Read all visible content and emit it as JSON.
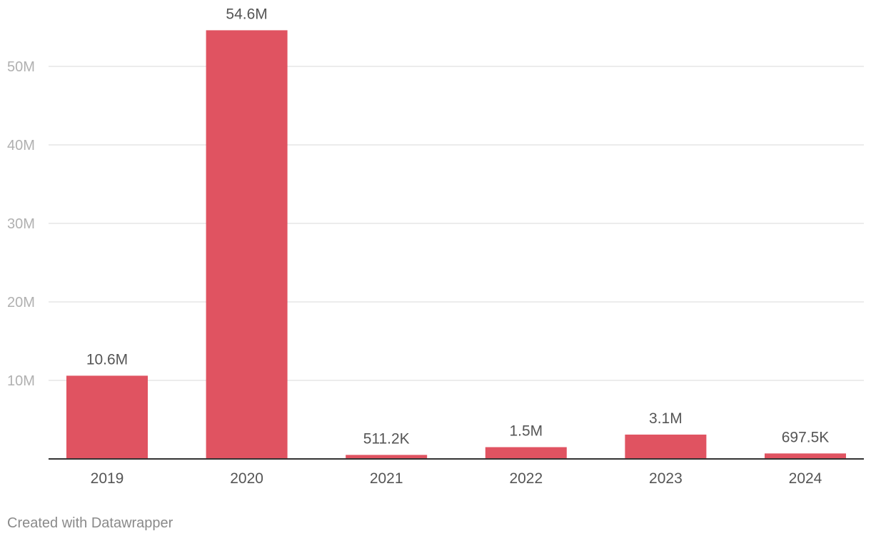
{
  "chart_data": {
    "type": "bar",
    "categories": [
      "2019",
      "2020",
      "2021",
      "2022",
      "2023",
      "2024"
    ],
    "values": [
      10600000,
      54600000,
      511200,
      1500000,
      3100000,
      697500
    ],
    "data_labels": [
      "10.6M",
      "54.6M",
      "511.2K",
      "1.5M",
      "3.1M",
      "697.5K"
    ],
    "yticks": [
      10000000,
      20000000,
      30000000,
      40000000,
      50000000
    ],
    "ytick_labels": [
      "10M",
      "20M",
      "30M",
      "40M",
      "50M"
    ],
    "ylim": [
      0,
      60000000
    ],
    "grid": true,
    "title": "",
    "xlabel": "",
    "ylabel": "",
    "colors": {
      "bar": "#e05361",
      "grid": "#e5e5e5",
      "baseline": "#333333"
    }
  },
  "footer": {
    "credit": "Created with Datawrapper"
  }
}
